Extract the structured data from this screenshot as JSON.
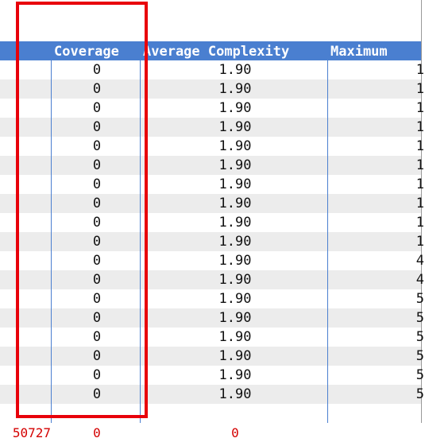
{
  "header": {
    "coverage": "Coverage",
    "average_complexity": "Average Complexity",
    "maximum": "Maximum"
  },
  "rows": [
    {
      "coverage": "0",
      "avg": "1.90",
      "max": "1"
    },
    {
      "coverage": "0",
      "avg": "1.90",
      "max": "1"
    },
    {
      "coverage": "0",
      "avg": "1.90",
      "max": "1"
    },
    {
      "coverage": "0",
      "avg": "1.90",
      "max": "1"
    },
    {
      "coverage": "0",
      "avg": "1.90",
      "max": "1"
    },
    {
      "coverage": "0",
      "avg": "1.90",
      "max": "1"
    },
    {
      "coverage": "0",
      "avg": "1.90",
      "max": "1"
    },
    {
      "coverage": "0",
      "avg": "1.90",
      "max": "1"
    },
    {
      "coverage": "0",
      "avg": "1.90",
      "max": "1"
    },
    {
      "coverage": "0",
      "avg": "1.90",
      "max": "1"
    },
    {
      "coverage": "0",
      "avg": "1.90",
      "max": "4"
    },
    {
      "coverage": "0",
      "avg": "1.90",
      "max": "4"
    },
    {
      "coverage": "0",
      "avg": "1.90",
      "max": "5"
    },
    {
      "coverage": "0",
      "avg": "1.90",
      "max": "5"
    },
    {
      "coverage": "0",
      "avg": "1.90",
      "max": "5"
    },
    {
      "coverage": "0",
      "avg": "1.90",
      "max": "5"
    },
    {
      "coverage": "0",
      "avg": "1.90",
      "max": "5"
    },
    {
      "coverage": "0",
      "avg": "1.90",
      "max": "5"
    },
    {
      "coverage": "",
      "avg": "",
      "max": ""
    }
  ],
  "footer": {
    "total": "50727",
    "coverage": "0",
    "avg": "0"
  },
  "colors": {
    "header_bg": "#4a7fd0",
    "highlight": "#e8000a",
    "footer_text": "#d40000",
    "alt_row": "#ececec"
  }
}
